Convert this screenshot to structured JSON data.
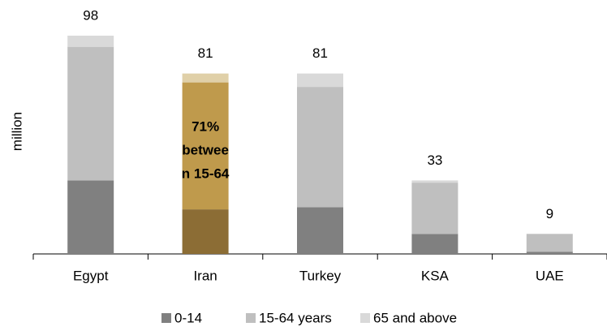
{
  "chart_data": {
    "type": "stacked_bar",
    "y_label": "million",
    "categories": [
      "Egypt",
      "Iran",
      "Turkey",
      "KSA",
      "UAE"
    ],
    "series": [
      {
        "name": "0-14",
        "color": "#808080",
        "highlight_color": "#8c6d35",
        "values": [
          33,
          20,
          21,
          9,
          1
        ]
      },
      {
        "name": "15-64 years",
        "color": "#bfbfbf",
        "highlight_color": "#bf9a4c",
        "values": [
          60,
          57,
          54,
          23,
          8
        ]
      },
      {
        "name": "65 and above",
        "color": "#d9d9d9",
        "highlight_color": "#e0d0a8",
        "values": [
          5,
          4,
          6,
          1,
          0
        ]
      }
    ],
    "totals": [
      98,
      81,
      81,
      33,
      9
    ],
    "highlight": "Iran",
    "annotation": [
      "71%",
      "betwee",
      "n 15-64"
    ],
    "ylim": [
      0,
      110
    ],
    "legend": "bottom"
  }
}
